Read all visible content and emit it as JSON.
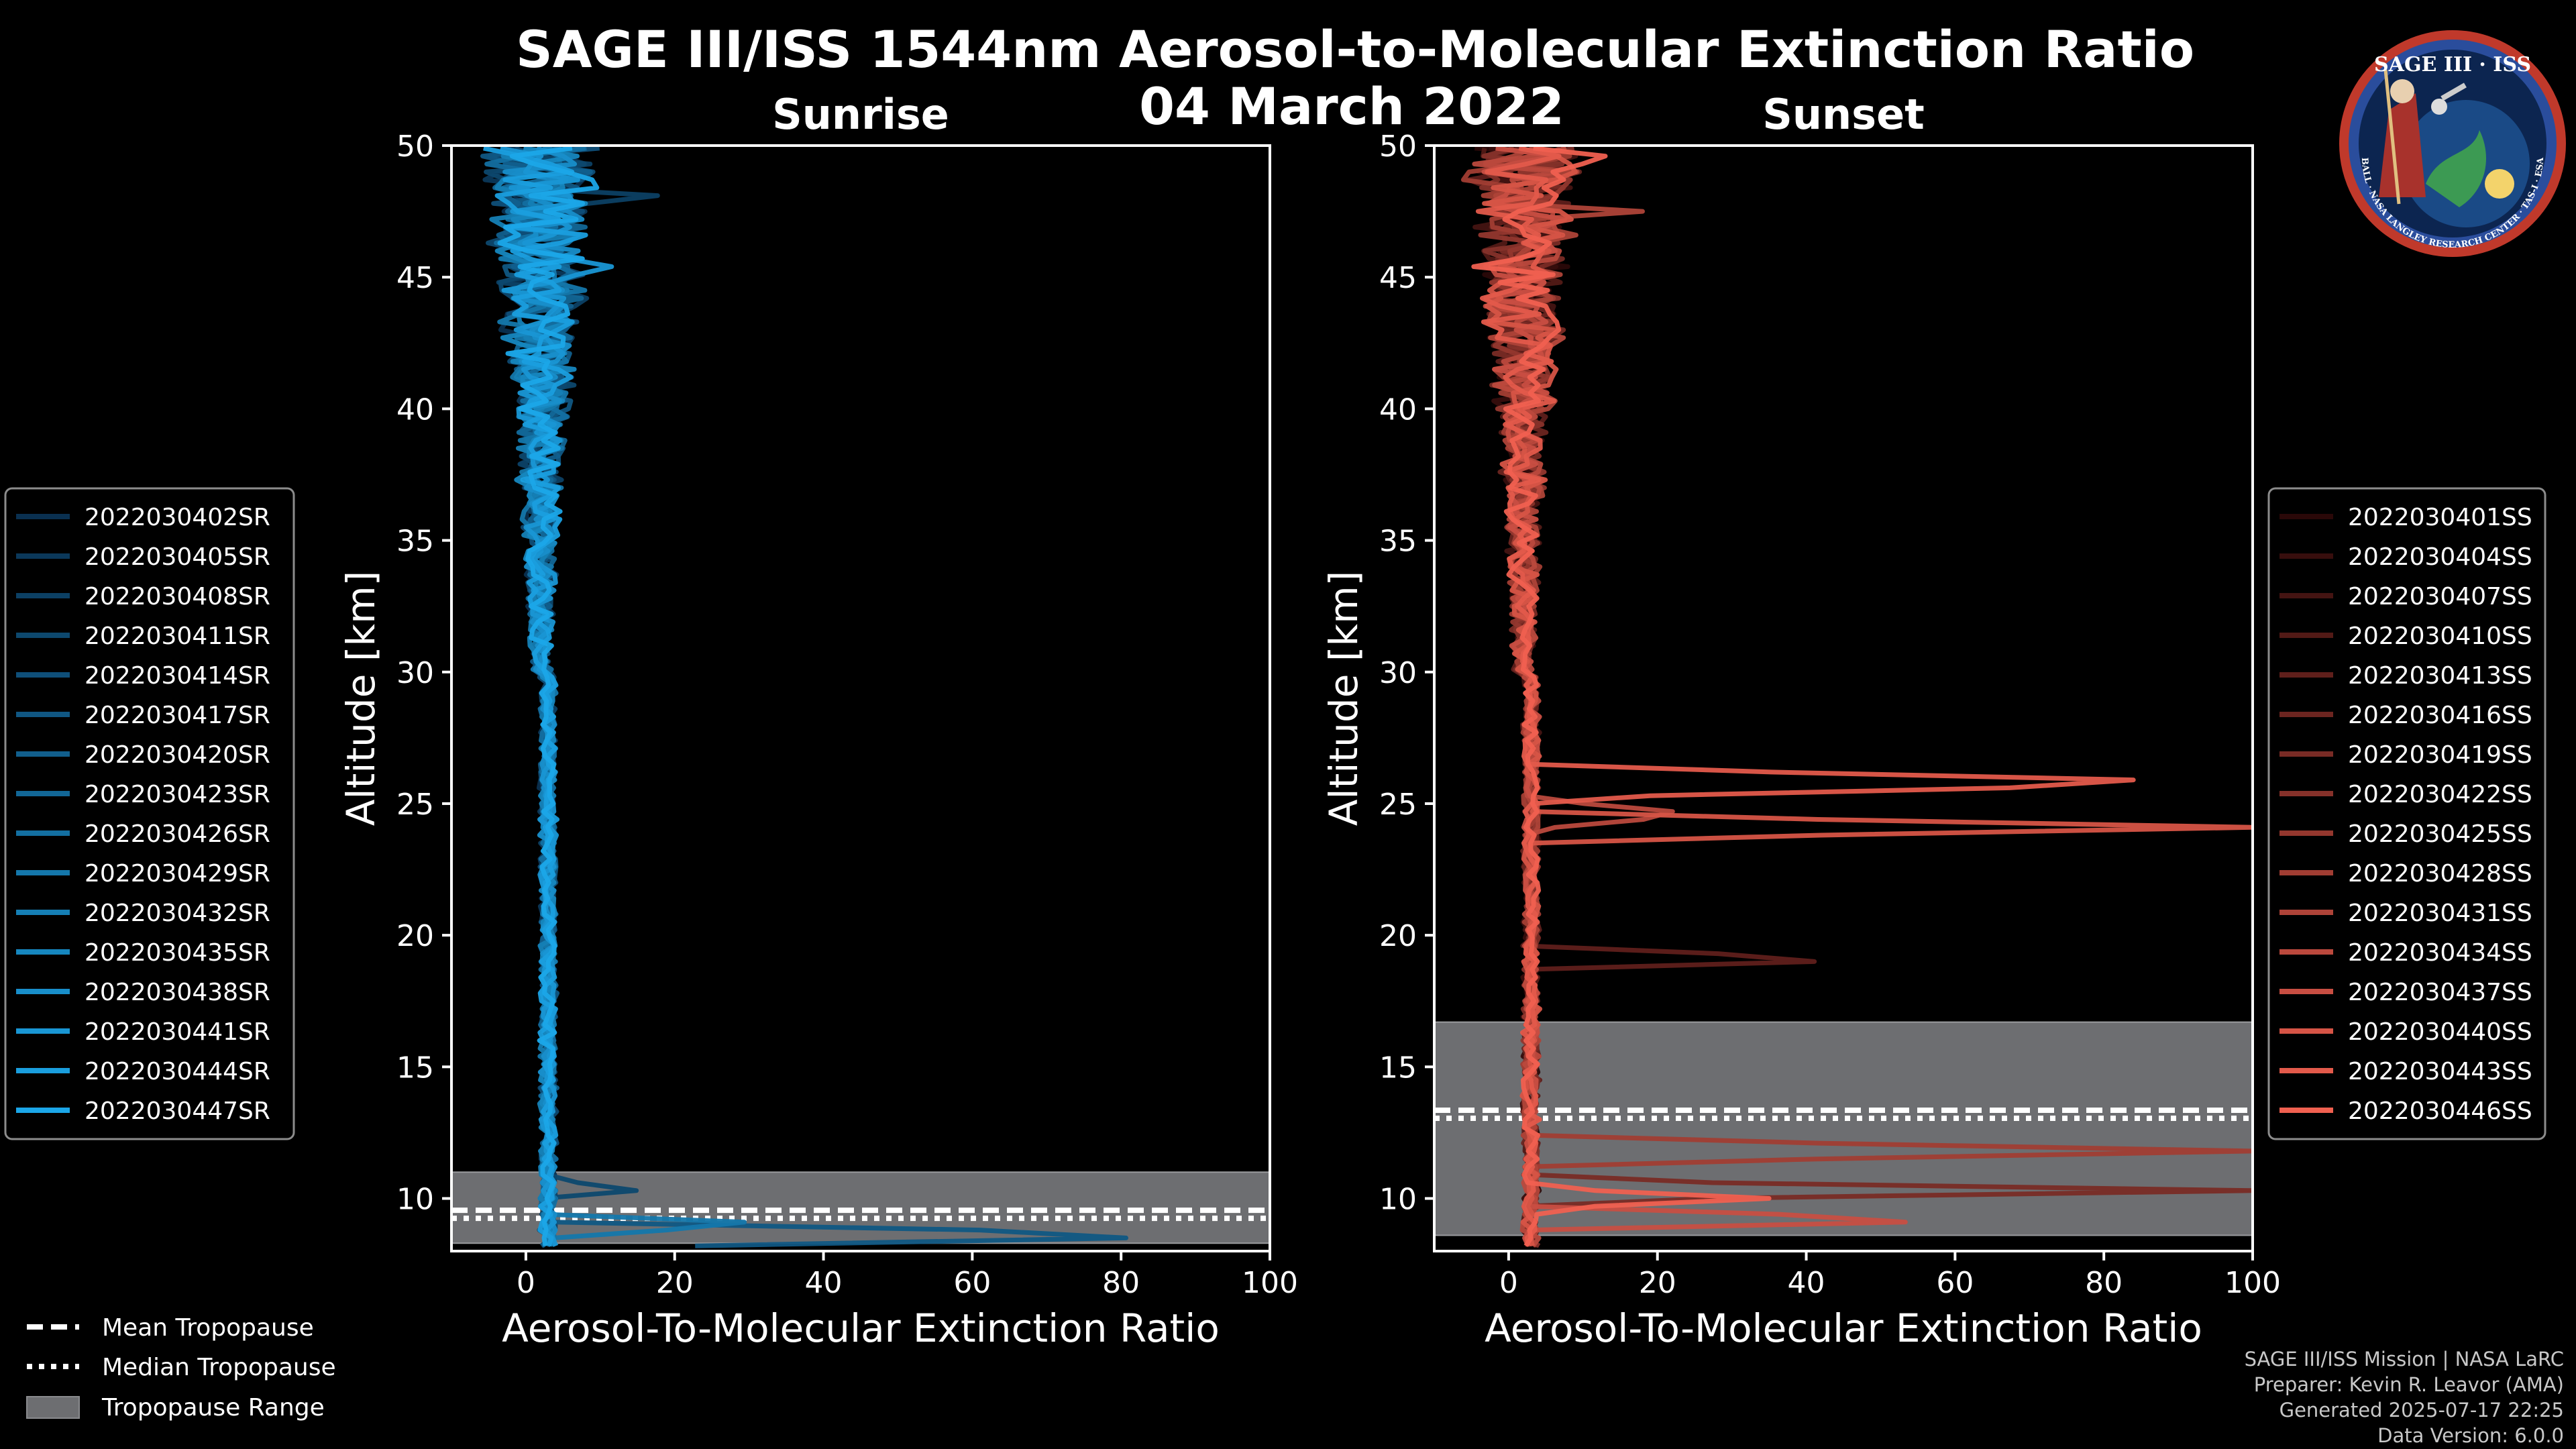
{
  "title": "SAGE III/ISS 1544nm Aerosol-to-Molecular Extinction Ratio",
  "date": "04 March 2022",
  "colors": {
    "background": "#000000",
    "sunrise_light": "#1ba6e8",
    "sunrise_dark": "#0a3050",
    "sunset_light": "#f06050",
    "sunset_dark": "#2a0808",
    "tropopause": "#6d6e71"
  },
  "chart_data": [
    {
      "type": "line",
      "panel": "Sunrise",
      "title": "Sunrise",
      "xlabel": "Aerosol-To-Molecular Extinction Ratio",
      "ylabel": "Altitude [km]",
      "xlim": [
        -10,
        100
      ],
      "ylim": [
        8,
        50
      ],
      "xticks": [
        0,
        20,
        40,
        60,
        80,
        100
      ],
      "yticks": [
        10,
        15,
        20,
        25,
        30,
        35,
        40,
        45,
        50
      ],
      "tropopause": {
        "mean": 9.4,
        "median": 9.4,
        "range": [
          8.3,
          11.0
        ]
      },
      "legend_position": "outside-left",
      "series": [
        {
          "name": "2022030402SR"
        },
        {
          "name": "2022030405SR"
        },
        {
          "name": "2022030408SR"
        },
        {
          "name": "2022030411SR"
        },
        {
          "name": "2022030414SR"
        },
        {
          "name": "2022030417SR"
        },
        {
          "name": "2022030420SR"
        },
        {
          "name": "2022030423SR"
        },
        {
          "name": "2022030426SR"
        },
        {
          "name": "2022030429SR"
        },
        {
          "name": "2022030432SR"
        },
        {
          "name": "2022030435SR"
        },
        {
          "name": "2022030438SR"
        },
        {
          "name": "2022030441SR"
        },
        {
          "name": "2022030444SR"
        },
        {
          "name": "2022030447SR"
        }
      ]
    },
    {
      "type": "line",
      "panel": "Sunset",
      "title": "Sunset",
      "xlabel": "Aerosol-To-Molecular Extinction Ratio",
      "ylabel": "Altitude [km]",
      "xlim": [
        -10,
        100
      ],
      "ylim": [
        8,
        50
      ],
      "xticks": [
        0,
        20,
        40,
        60,
        80,
        100
      ],
      "yticks": [
        10,
        15,
        20,
        25,
        30,
        35,
        40,
        45,
        50
      ],
      "tropopause": {
        "mean": 13.2,
        "median": 13.2,
        "range": [
          8.6,
          16.7
        ]
      },
      "legend_position": "outside-right",
      "series": [
        {
          "name": "2022030401SS"
        },
        {
          "name": "2022030404SS"
        },
        {
          "name": "2022030407SS"
        },
        {
          "name": "2022030410SS"
        },
        {
          "name": "2022030413SS"
        },
        {
          "name": "2022030416SS"
        },
        {
          "name": "2022030419SS"
        },
        {
          "name": "2022030422SS"
        },
        {
          "name": "2022030425SS"
        },
        {
          "name": "2022030428SS"
        },
        {
          "name": "2022030431SS"
        },
        {
          "name": "2022030434SS"
        },
        {
          "name": "2022030437SS"
        },
        {
          "name": "2022030440SS"
        },
        {
          "name": "2022030443SS"
        },
        {
          "name": "2022030446SS"
        }
      ]
    }
  ],
  "tropopause_legend": [
    "Mean Tropopause",
    "Median Tropopause",
    "Tropopause Range"
  ],
  "credits": [
    "SAGE III/ISS Mission | NASA LaRC",
    "Preparer: Kevin R. Leavor (AMA)",
    "Generated 2025-07-17 22:25",
    "Data Version: 6.0.0"
  ],
  "logo": {
    "top": "SAGE III · ISS",
    "ring": "BALL · NASA LANGLEY RESEARCH CENTER · TAS-I · ESA",
    "icon": "sage-iii-mission-patch"
  }
}
